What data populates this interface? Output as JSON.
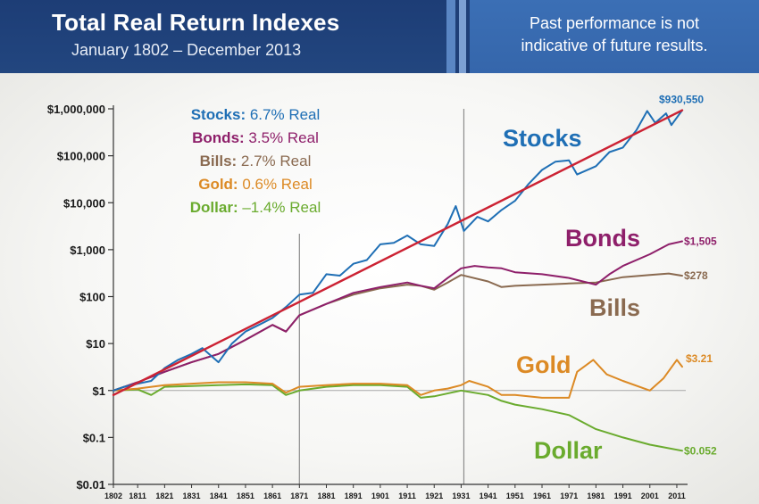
{
  "header": {
    "title": "Total Real Return Indexes",
    "subtitle": "January 1802 – December 2013",
    "disclaimer_line1": "Past performance is not",
    "disclaimer_line2": "indicative of future results."
  },
  "colors": {
    "header_dark": "#1f3f78",
    "header_light": "#3a6db3",
    "stocks": "#1f6fb5",
    "trend": "#cc2233",
    "bonds": "#8e1f6a",
    "bills": "#8a6a50",
    "gold": "#dc8a25",
    "dollar": "#6aab2e"
  },
  "chart_data": {
    "type": "line",
    "title": "Total Real Return Indexes",
    "subtitle": "January 1802 – December 2013",
    "y_scale": "log",
    "ylim": [
      0.01,
      1000000
    ],
    "xlim": [
      1802,
      2013
    ],
    "y_ticks": [
      0.01,
      0.1,
      1,
      10,
      100,
      1000,
      10000,
      100000,
      1000000
    ],
    "y_tick_labels": [
      "$0.01",
      "$0.1",
      "$1",
      "$10",
      "$100",
      "$1,000",
      "$10,000",
      "$100,000",
      "$1,000,000"
    ],
    "x_ticks": [
      1802,
      1811,
      1821,
      1831,
      1841,
      1851,
      1861,
      1871,
      1881,
      1891,
      1901,
      1911,
      1921,
      1931,
      1941,
      1951,
      1961,
      1971,
      1981,
      1991,
      2001,
      2011
    ],
    "reference_lines_x": [
      1871,
      1932
    ],
    "legend": [
      {
        "name": "Stocks",
        "value": "6.7% Real",
        "color": "#1f6fb5"
      },
      {
        "name": "Bonds",
        "value": "3.5% Real",
        "color": "#8e1f6a"
      },
      {
        "name": "Bills",
        "value": "2.7% Real",
        "color": "#8a6a50"
      },
      {
        "name": "Gold",
        "value": "0.6% Real",
        "color": "#dc8a25"
      },
      {
        "name": "Dollar",
        "value": "–1.4% Real",
        "color": "#6aab2e"
      }
    ],
    "series": [
      {
        "name": "Stocks",
        "color": "#1f6fb5",
        "end_label": "$930,550",
        "x": [
          1802,
          1806,
          1811,
          1816,
          1821,
          1826,
          1831,
          1835,
          1841,
          1846,
          1851,
          1856,
          1861,
          1866,
          1871,
          1876,
          1881,
          1886,
          1891,
          1896,
          1901,
          1906,
          1911,
          1916,
          1921,
          1926,
          1929,
          1932,
          1937,
          1941,
          1946,
          1951,
          1956,
          1961,
          1966,
          1971,
          1974,
          1981,
          1986,
          1991,
          1996,
          2000,
          2003,
          2007,
          2009,
          2013
        ],
        "y": [
          1,
          1.2,
          1.4,
          1.6,
          3,
          4.5,
          6,
          8,
          4,
          10,
          18,
          25,
          35,
          60,
          110,
          120,
          300,
          280,
          500,
          600,
          1300,
          1400,
          2000,
          1300,
          1200,
          3500,
          8500,
          2500,
          5000,
          4000,
          7000,
          11000,
          25000,
          50000,
          75000,
          80000,
          40000,
          60000,
          120000,
          150000,
          350000,
          900000,
          500000,
          800000,
          450000,
          930550
        ]
      },
      {
        "name": "Trend",
        "color": "#cc2233",
        "x": [
          1802,
          2013
        ],
        "y": [
          0.8,
          930550
        ]
      },
      {
        "name": "Bonds",
        "color": "#8e1f6a",
        "end_label": "$1,505",
        "x": [
          1802,
          1811,
          1821,
          1831,
          1841,
          1851,
          1861,
          1866,
          1871,
          1881,
          1891,
          1901,
          1911,
          1916,
          1921,
          1926,
          1931,
          1936,
          1941,
          1946,
          1951,
          1961,
          1971,
          1981,
          1986,
          1991,
          2001,
          2008,
          2013
        ],
        "y": [
          1,
          1.5,
          2.5,
          4,
          6,
          12,
          25,
          18,
          40,
          70,
          120,
          160,
          200,
          170,
          150,
          250,
          400,
          450,
          420,
          400,
          330,
          300,
          250,
          180,
          300,
          450,
          800,
          1300,
          1505
        ]
      },
      {
        "name": "Bills",
        "color": "#8a6a50",
        "end_label": "$278",
        "x": [
          1802,
          1811,
          1821,
          1831,
          1841,
          1851,
          1861,
          1866,
          1871,
          1881,
          1891,
          1901,
          1911,
          1916,
          1921,
          1926,
          1931,
          1941,
          1946,
          1951,
          1961,
          1971,
          1981,
          1991,
          2001,
          2008,
          2013
        ],
        "y": [
          1,
          1.5,
          2.5,
          4,
          6,
          12,
          25,
          18,
          40,
          70,
          110,
          150,
          180,
          170,
          140,
          200,
          290,
          210,
          160,
          170,
          180,
          190,
          200,
          260,
          290,
          310,
          278
        ]
      },
      {
        "name": "Gold",
        "color": "#dc8a25",
        "end_label": "$3.21",
        "x": [
          1802,
          1811,
          1821,
          1831,
          1841,
          1851,
          1861,
          1866,
          1871,
          1881,
          1891,
          1901,
          1911,
          1916,
          1921,
          1926,
          1931,
          1934,
          1941,
          1946,
          1951,
          1961,
          1971,
          1974,
          1980,
          1985,
          1991,
          2001,
          2006,
          2011,
          2013
        ],
        "y": [
          1,
          1.1,
          1.3,
          1.4,
          1.5,
          1.5,
          1.4,
          0.9,
          1.2,
          1.3,
          1.4,
          1.4,
          1.3,
          0.8,
          1.0,
          1.1,
          1.3,
          1.6,
          1.2,
          0.8,
          0.8,
          0.7,
          0.7,
          2.5,
          4.5,
          2.2,
          1.6,
          1.0,
          1.8,
          4.5,
          3.21
        ]
      },
      {
        "name": "Dollar",
        "color": "#6aab2e",
        "end_label": "$0.052",
        "x": [
          1802,
          1811,
          1816,
          1821,
          1831,
          1841,
          1851,
          1861,
          1866,
          1871,
          1881,
          1891,
          1901,
          1911,
          1916,
          1921,
          1931,
          1941,
          1946,
          1951,
          1961,
          1971,
          1981,
          1991,
          2001,
          2013
        ],
        "y": [
          1,
          1.05,
          0.8,
          1.2,
          1.25,
          1.3,
          1.35,
          1.3,
          0.8,
          1.0,
          1.2,
          1.3,
          1.3,
          1.2,
          0.7,
          0.75,
          1.0,
          0.8,
          0.6,
          0.5,
          0.4,
          0.3,
          0.15,
          0.1,
          0.07,
          0.052
        ]
      }
    ],
    "series_labels": [
      {
        "text": "Stocks",
        "series": "Stocks"
      },
      {
        "text": "Bonds",
        "series": "Bonds"
      },
      {
        "text": "Bills",
        "series": "Bills"
      },
      {
        "text": "Gold",
        "series": "Gold"
      },
      {
        "text": "Dollar",
        "series": "Dollar"
      }
    ]
  }
}
